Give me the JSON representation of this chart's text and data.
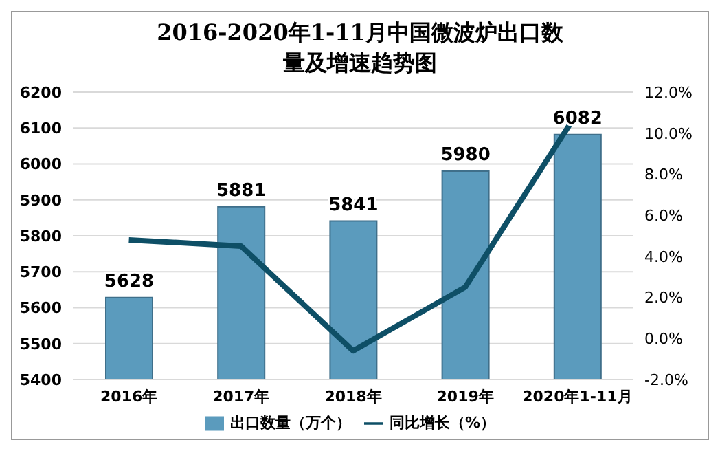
{
  "chart_data": {
    "type": "bar",
    "title": "2016-2020年1-11月中国微波炉出口数量及增速趋势图",
    "categories": [
      "2016年",
      "2017年",
      "2018年",
      "2019年",
      "2020年1-11月"
    ],
    "series": [
      {
        "name": "出口数量（万个）",
        "color": "#5b9bbd",
        "values": [
          5628,
          5881,
          5841,
          5980,
          6082
        ],
        "value_labels": [
          "5628",
          "5881",
          "5841",
          "5980",
          "6082"
        ]
      },
      {
        "name": "同比增长（%）",
        "type": "line",
        "axis": "y2",
        "color": "#0e4f66",
        "values": [
          4.8,
          4.5,
          -0.6,
          2.5,
          11.0
        ]
      }
    ],
    "ylim": [
      5400,
      6200
    ],
    "yticks": [
      5400,
      5500,
      5600,
      5700,
      5800,
      5900,
      6000,
      6100,
      6200
    ],
    "y2lim": [
      -2,
      12
    ],
    "y2ticks": [
      {
        "value": -2,
        "label": "-2.0%"
      },
      {
        "value": 0,
        "label": "0.0%"
      },
      {
        "value": 2,
        "label": "2.0%"
      },
      {
        "value": 4,
        "label": "4.0%"
      },
      {
        "value": 6,
        "label": "6.0%"
      },
      {
        "value": 8,
        "label": "8.0%"
      },
      {
        "value": 10,
        "label": "10.0%"
      },
      {
        "value": 12,
        "label": "12.0%"
      }
    ],
    "grid": "y",
    "legend": "bottom",
    "marker": "none"
  }
}
